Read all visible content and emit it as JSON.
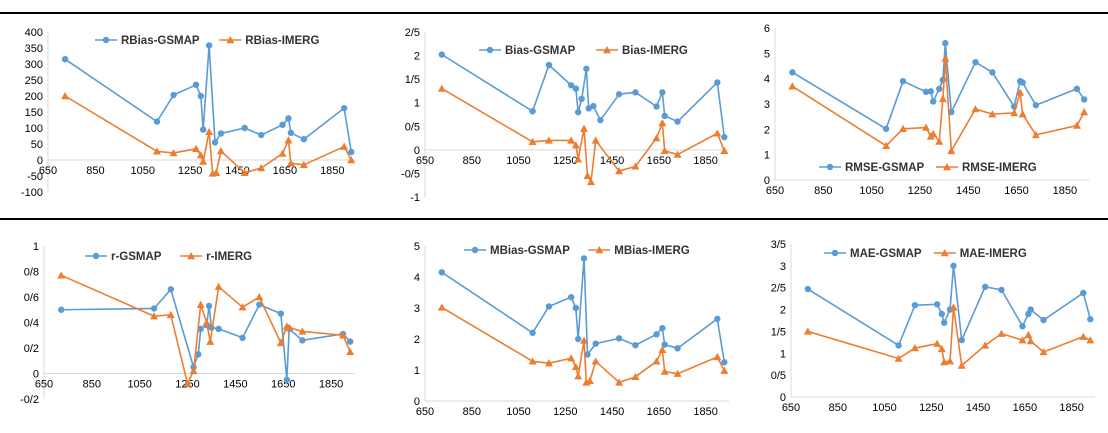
{
  "colors": {
    "gsmap": "#5b9bd5",
    "imerg": "#ed7d31",
    "axis": "#d9d9d9"
  },
  "chart_data": [
    {
      "type": "line",
      "xlim": [
        650,
        1950
      ],
      "xticks": [
        "650",
        "850",
        "1050",
        "1250",
        "1450",
        "1650",
        "1850"
      ],
      "ylim": [
        -100,
        400
      ],
      "yticks": [
        "-100",
        "-50",
        "0",
        "50",
        "100",
        "150",
        "200",
        "250",
        "300",
        "350",
        "400"
      ],
      "legend": "top-left",
      "series": [
        {
          "name": "RBias-GSMAP",
          "marker": "circle",
          "points": [
            [
              722,
              315
            ],
            [
              1110,
              120
            ],
            [
              1180,
              203
            ],
            [
              1275,
              235
            ],
            [
              1295,
              200
            ],
            [
              1305,
              95
            ],
            [
              1330,
              358
            ],
            [
              1355,
              55
            ],
            [
              1380,
              83
            ],
            [
              1480,
              100
            ],
            [
              1550,
              78
            ],
            [
              1640,
              110
            ],
            [
              1665,
              130
            ],
            [
              1675,
              85
            ],
            [
              1730,
              65
            ],
            [
              1900,
              162
            ],
            [
              1930,
              25
            ]
          ]
        },
        {
          "name": "RBias-IMERG",
          "marker": "triangle",
          "points": [
            [
              722,
              200
            ],
            [
              1110,
              27
            ],
            [
              1180,
              22
            ],
            [
              1275,
              35
            ],
            [
              1295,
              15
            ],
            [
              1305,
              -5
            ],
            [
              1330,
              88
            ],
            [
              1345,
              -42
            ],
            [
              1360,
              -40
            ],
            [
              1380,
              28
            ],
            [
              1480,
              -40
            ],
            [
              1550,
              -25
            ],
            [
              1640,
              20
            ],
            [
              1665,
              62
            ],
            [
              1675,
              -10
            ],
            [
              1730,
              -15
            ],
            [
              1900,
              42
            ],
            [
              1930,
              0
            ]
          ]
        }
      ]
    },
    {
      "type": "line",
      "xlim": [
        650,
        1950
      ],
      "xticks": [
        "650",
        "850",
        "1050",
        "1250",
        "1450",
        "1650",
        "1850"
      ],
      "ylim": [
        -1,
        2.5
      ],
      "yticks": [
        "-1",
        "-0/5",
        "0",
        "0/5",
        "1",
        "1/5",
        "2",
        "2/5"
      ],
      "legend": "top-left",
      "series": [
        {
          "name": "Bias-GSMAP",
          "marker": "circle",
          "points": [
            [
              722,
              2.02
            ],
            [
              1110,
              0.82
            ],
            [
              1180,
              1.8
            ],
            [
              1275,
              1.37
            ],
            [
              1295,
              1.3
            ],
            [
              1305,
              0.8
            ],
            [
              1320,
              1.08
            ],
            [
              1340,
              1.72
            ],
            [
              1350,
              0.88
            ],
            [
              1370,
              0.93
            ],
            [
              1400,
              0.63
            ],
            [
              1480,
              1.18
            ],
            [
              1550,
              1.22
            ],
            [
              1640,
              0.92
            ],
            [
              1665,
              1.22
            ],
            [
              1675,
              0.72
            ],
            [
              1730,
              0.6
            ],
            [
              1900,
              1.43
            ],
            [
              1930,
              0.27
            ]
          ]
        },
        {
          "name": "Bias-IMERG",
          "marker": "triangle",
          "points": [
            [
              722,
              1.3
            ],
            [
              1110,
              0.17
            ],
            [
              1180,
              0.2
            ],
            [
              1275,
              0.2
            ],
            [
              1295,
              0.1
            ],
            [
              1305,
              -0.2
            ],
            [
              1330,
              0.45
            ],
            [
              1345,
              -0.55
            ],
            [
              1360,
              -0.68
            ],
            [
              1380,
              0.2
            ],
            [
              1480,
              -0.45
            ],
            [
              1550,
              -0.35
            ],
            [
              1640,
              0.25
            ],
            [
              1665,
              0.57
            ],
            [
              1675,
              -0.02
            ],
            [
              1730,
              -0.1
            ],
            [
              1900,
              0.35
            ],
            [
              1930,
              -0.02
            ]
          ]
        }
      ]
    },
    {
      "type": "line",
      "xlim": [
        650,
        1950
      ],
      "xticks": [
        "650",
        "850",
        "1050",
        "1250",
        "1450",
        "1650",
        "1850"
      ],
      "ylim": [
        0,
        6
      ],
      "yticks": [
        "0",
        "1",
        "2",
        "3",
        "4",
        "5",
        "6"
      ],
      "legend": "bottom-left",
      "series": [
        {
          "name": "RMSE-GSMAP",
          "marker": "circle",
          "points": [
            [
              722,
              4.25
            ],
            [
              1110,
              2.02
            ],
            [
              1180,
              3.9
            ],
            [
              1275,
              3.48
            ],
            [
              1295,
              3.5
            ],
            [
              1305,
              3.1
            ],
            [
              1330,
              3.6
            ],
            [
              1345,
              3.95
            ],
            [
              1355,
              5.4
            ],
            [
              1380,
              2.68
            ],
            [
              1480,
              4.65
            ],
            [
              1550,
              4.25
            ],
            [
              1640,
              2.9
            ],
            [
              1665,
              3.9
            ],
            [
              1675,
              3.85
            ],
            [
              1730,
              2.95
            ],
            [
              1900,
              3.6
            ],
            [
              1930,
              3.18
            ]
          ]
        },
        {
          "name": "RMSE-IMERG",
          "marker": "triangle",
          "points": [
            [
              722,
              3.7
            ],
            [
              1110,
              1.35
            ],
            [
              1180,
              2.02
            ],
            [
              1275,
              2.07
            ],
            [
              1295,
              1.72
            ],
            [
              1305,
              1.82
            ],
            [
              1330,
              1.52
            ],
            [
              1345,
              3.2
            ],
            [
              1355,
              4.8
            ],
            [
              1380,
              1.15
            ],
            [
              1480,
              2.8
            ],
            [
              1550,
              2.6
            ],
            [
              1640,
              2.65
            ],
            [
              1665,
              3.45
            ],
            [
              1675,
              2.6
            ],
            [
              1730,
              1.78
            ],
            [
              1900,
              2.15
            ],
            [
              1930,
              2.68
            ]
          ]
        }
      ]
    },
    {
      "type": "line",
      "xlim": [
        650,
        1950
      ],
      "xticks": [
        "650",
        "850",
        "1050",
        "1250",
        "1450",
        "1650",
        "1850"
      ],
      "ylim": [
        -0.2,
        1
      ],
      "yticks": [
        "-0/2",
        "0",
        "0/2",
        "0/4",
        "0/6",
        "0/8",
        "1"
      ],
      "legend": "top-left",
      "series": [
        {
          "name": "r-GSMAP",
          "marker": "circle",
          "points": [
            [
              722,
              0.5
            ],
            [
              1110,
              0.51
            ],
            [
              1180,
              0.66
            ],
            [
              1275,
              0.05
            ],
            [
              1295,
              0.15
            ],
            [
              1305,
              0.35
            ],
            [
              1330,
              0.38
            ],
            [
              1340,
              0.53
            ],
            [
              1350,
              0.36
            ],
            [
              1380,
              0.35
            ],
            [
              1480,
              0.28
            ],
            [
              1550,
              0.54
            ],
            [
              1640,
              0.47
            ],
            [
              1665,
              -0.05
            ],
            [
              1675,
              0.35
            ],
            [
              1730,
              0.26
            ],
            [
              1900,
              0.31
            ],
            [
              1930,
              0.25
            ]
          ]
        },
        {
          "name": "r-IMERG",
          "marker": "triangle",
          "points": [
            [
              722,
              0.77
            ],
            [
              1110,
              0.45
            ],
            [
              1180,
              0.46
            ],
            [
              1250,
              -0.08
            ],
            [
              1275,
              0.02
            ],
            [
              1305,
              0.54
            ],
            [
              1330,
              0.4
            ],
            [
              1345,
              0.25
            ],
            [
              1380,
              0.68
            ],
            [
              1480,
              0.52
            ],
            [
              1550,
              0.6
            ],
            [
              1640,
              0.24
            ],
            [
              1665,
              0.37
            ],
            [
              1675,
              0.36
            ],
            [
              1730,
              0.33
            ],
            [
              1900,
              0.3
            ],
            [
              1930,
              0.17
            ]
          ]
        }
      ]
    },
    {
      "type": "line",
      "xlim": [
        650,
        1950
      ],
      "xticks": [
        "650",
        "850",
        "1050",
        "1250",
        "1450",
        "1650",
        "1850"
      ],
      "ylim": [
        0,
        5
      ],
      "yticks": [
        "0",
        "1",
        "2",
        "3",
        "4",
        "5"
      ],
      "legend": "top-left",
      "series": [
        {
          "name": "MBias-GSMAP",
          "marker": "circle",
          "points": [
            [
              722,
              4.15
            ],
            [
              1110,
              2.2
            ],
            [
              1180,
              3.05
            ],
            [
              1275,
              3.35
            ],
            [
              1295,
              3.0
            ],
            [
              1305,
              2.0
            ],
            [
              1330,
              4.6
            ],
            [
              1345,
              1.5
            ],
            [
              1380,
              1.85
            ],
            [
              1480,
              2.02
            ],
            [
              1550,
              1.8
            ],
            [
              1640,
              2.15
            ],
            [
              1665,
              2.35
            ],
            [
              1675,
              1.82
            ],
            [
              1730,
              1.7
            ],
            [
              1900,
              2.65
            ],
            [
              1930,
              1.25
            ]
          ]
        },
        {
          "name": "MBias-IMERG",
          "marker": "triangle",
          "points": [
            [
              722,
              3.02
            ],
            [
              1110,
              1.28
            ],
            [
              1180,
              1.22
            ],
            [
              1275,
              1.38
            ],
            [
              1295,
              1.1
            ],
            [
              1305,
              0.8
            ],
            [
              1330,
              1.95
            ],
            [
              1340,
              0.6
            ],
            [
              1355,
              0.65
            ],
            [
              1380,
              1.28
            ],
            [
              1480,
              0.6
            ],
            [
              1550,
              0.78
            ],
            [
              1640,
              1.28
            ],
            [
              1665,
              1.65
            ],
            [
              1675,
              0.95
            ],
            [
              1730,
              0.88
            ],
            [
              1900,
              1.42
            ],
            [
              1930,
              0.98
            ]
          ]
        }
      ]
    },
    {
      "type": "line",
      "xlim": [
        650,
        1950
      ],
      "xticks": [
        "650",
        "850",
        "1050",
        "1250",
        "1450",
        "1650",
        "1850"
      ],
      "ylim": [
        0,
        3.5
      ],
      "yticks": [
        "0",
        "0/5",
        "1",
        "1/5",
        "2",
        "2/5",
        "3",
        "3/5"
      ],
      "legend": "top-left",
      "series": [
        {
          "name": "MAE-GSMAP",
          "marker": "circle",
          "points": [
            [
              722,
              2.47
            ],
            [
              1110,
              1.18
            ],
            [
              1180,
              2.1
            ],
            [
              1275,
              2.12
            ],
            [
              1295,
              1.9
            ],
            [
              1305,
              1.7
            ],
            [
              1330,
              2.0
            ],
            [
              1345,
              3.0
            ],
            [
              1380,
              1.3
            ],
            [
              1480,
              2.52
            ],
            [
              1550,
              2.45
            ],
            [
              1640,
              1.62
            ],
            [
              1665,
              1.9
            ],
            [
              1675,
              2.0
            ],
            [
              1730,
              1.76
            ],
            [
              1900,
              2.38
            ],
            [
              1930,
              1.78
            ]
          ]
        },
        {
          "name": "MAE-IMERG",
          "marker": "triangle",
          "points": [
            [
              722,
              1.5
            ],
            [
              1110,
              0.88
            ],
            [
              1180,
              1.12
            ],
            [
              1275,
              1.22
            ],
            [
              1295,
              1.1
            ],
            [
              1305,
              0.8
            ],
            [
              1330,
              0.82
            ],
            [
              1345,
              2.05
            ],
            [
              1380,
              0.72
            ],
            [
              1480,
              1.18
            ],
            [
              1550,
              1.45
            ],
            [
              1640,
              1.3
            ],
            [
              1665,
              1.42
            ],
            [
              1675,
              1.28
            ],
            [
              1730,
              1.03
            ],
            [
              1900,
              1.38
            ],
            [
              1930,
              1.3
            ]
          ]
        }
      ]
    }
  ]
}
